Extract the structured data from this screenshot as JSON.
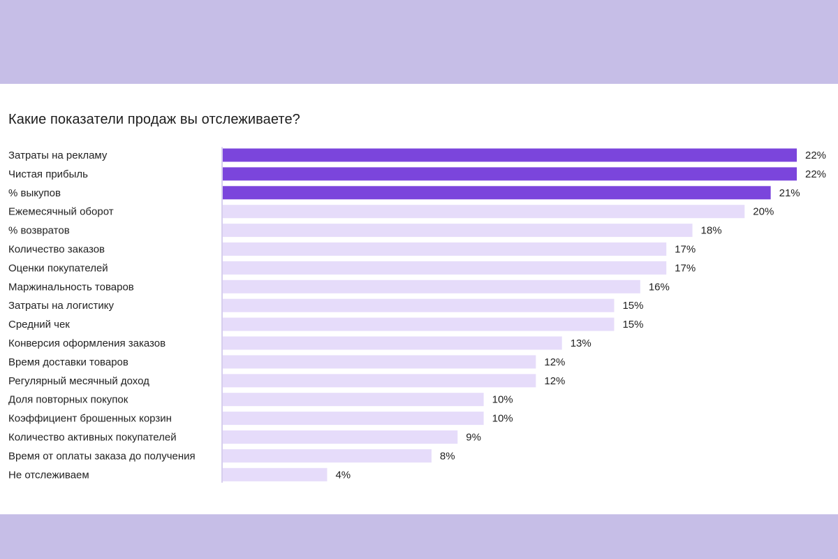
{
  "colors": {
    "band": "#c6bee7",
    "highlight": "#7b45dc",
    "regular": "#e6dcfa",
    "axis": "#c8bde8"
  },
  "chart_data": {
    "type": "bar",
    "orientation": "horizontal",
    "title": "Какие показатели продаж вы отслеживаете?",
    "xlim": [
      0,
      22
    ],
    "grid": false,
    "categories": [
      "Затраты на рекламу",
      "Чистая прибыль",
      "% выкупов",
      "Ежемесячный оборот",
      "% возвратов",
      "Количество заказов",
      "Оценки покупателей",
      "Маржинальность товаров",
      "Затраты на логистику",
      "Средний чек",
      "Конверсия оформления заказов",
      "Время доставки товаров",
      "Регулярный месячный доход",
      "Доля повторных покупок",
      "Коэффициент брошенных корзин",
      "Количество активных покупателей",
      "Время от оплаты заказа до получения",
      "Не отслеживаем"
    ],
    "values": [
      22,
      22,
      21,
      20,
      18,
      17,
      17,
      16,
      15,
      15,
      13,
      12,
      12,
      10,
      10,
      9,
      8,
      4
    ],
    "value_labels": [
      "22%",
      "22%",
      "21%",
      "20%",
      "18%",
      "17%",
      "17%",
      "16%",
      "15%",
      "15%",
      "13%",
      "12%",
      "12%",
      "10%",
      "10%",
      "9%",
      "8%",
      "4%"
    ],
    "highlighted_top_n": 3
  }
}
